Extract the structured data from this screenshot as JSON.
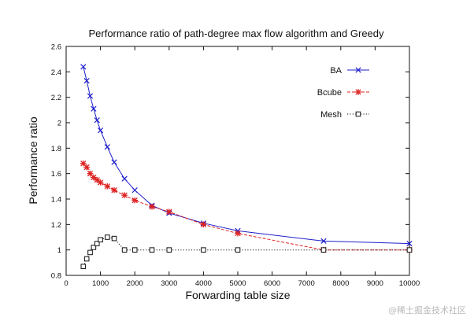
{
  "chart_data": {
    "type": "line",
    "title": "Performance ratio of path-degree max flow algorithm and Greedy",
    "xlabel": "Forwarding table size",
    "ylabel": "Performance ratio",
    "xlim": [
      0,
      10000
    ],
    "ylim": [
      0.8,
      2.6
    ],
    "xticks": [
      0,
      1000,
      2000,
      3000,
      4000,
      5000,
      6000,
      7000,
      8000,
      9000,
      10000
    ],
    "yticks": [
      0.8,
      1,
      1.2,
      1.4,
      1.6,
      1.8,
      2,
      2.2,
      2.4,
      2.6
    ],
    "ytick_labels": [
      "0.8",
      "1",
      "1.2",
      "1.4",
      "1.6",
      "1.8",
      "2",
      "2.2",
      "2.4",
      "2.6"
    ],
    "legend_position": "top-right",
    "series": [
      {
        "name": "BA",
        "color": "#1f1fcc",
        "line_style": "solid",
        "marker": "x",
        "x": [
          500,
          600,
          700,
          800,
          900,
          1000,
          1200,
          1400,
          1700,
          2000,
          2500,
          3000,
          4000,
          5000,
          7500,
          10000
        ],
        "y": [
          2.44,
          2.33,
          2.21,
          2.11,
          2.02,
          1.94,
          1.81,
          1.69,
          1.56,
          1.47,
          1.35,
          1.29,
          1.21,
          1.15,
          1.07,
          1.05
        ]
      },
      {
        "name": "Bcube",
        "color": "#dd2222",
        "line_style": "dashed",
        "marker": "asterisk",
        "x": [
          500,
          600,
          700,
          800,
          900,
          1000,
          1200,
          1400,
          1700,
          2000,
          2500,
          3000,
          4000,
          5000,
          7500,
          10000
        ],
        "y": [
          1.68,
          1.65,
          1.6,
          1.57,
          1.55,
          1.53,
          1.5,
          1.47,
          1.43,
          1.39,
          1.34,
          1.3,
          1.2,
          1.13,
          1.0,
          1.0
        ]
      },
      {
        "name": "Mesh",
        "color": "#111111",
        "line_style": "dotted",
        "marker": "square",
        "x": [
          500,
          600,
          700,
          800,
          900,
          1000,
          1200,
          1400,
          1700,
          2000,
          2500,
          3000,
          4000,
          5000,
          7500,
          10000
        ],
        "y": [
          0.87,
          0.93,
          0.98,
          1.02,
          1.05,
          1.08,
          1.1,
          1.09,
          1.0,
          1.0,
          1.0,
          1.0,
          1.0,
          1.0,
          1.0,
          1.0
        ]
      }
    ]
  },
  "watermark": "@稀土掘金技术社区"
}
